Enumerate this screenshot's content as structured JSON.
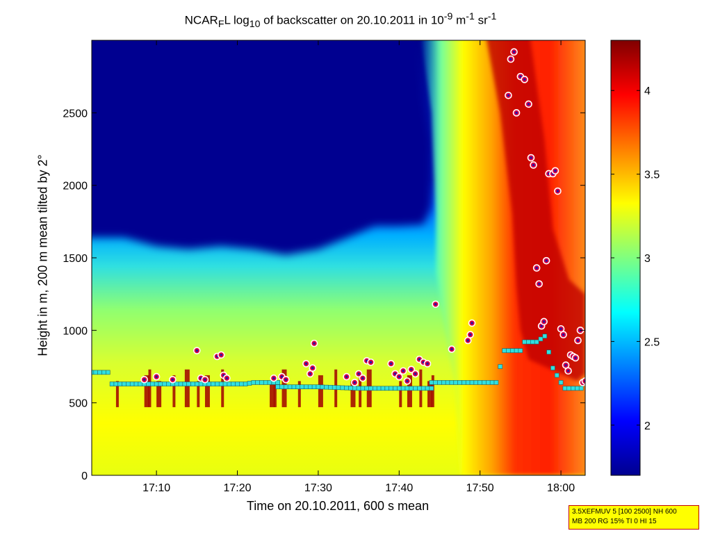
{
  "chart_data": {
    "type": "heatmap",
    "title": {
      "main": "NCAR",
      "sub1": "F",
      "mid1": "L log",
      "sub2": "10",
      "mid2": " of backscatter on 20.10.2011 in 10",
      "sup1": "-9",
      "mid3": " m",
      "sup2": "-1",
      "mid4": " sr",
      "sup3": "-1"
    },
    "xlabel": "Time on 20.10.2011, 600 s mean",
    "ylabel": "Height in m, 200 m mean tilted by 2°",
    "x_unit": "minutes since 17:00",
    "xlim": [
      2,
      63
    ],
    "ylim": [
      0,
      3000
    ],
    "x_ticks": [
      {
        "value": 10,
        "label": "17:10"
      },
      {
        "value": 20,
        "label": "17:20"
      },
      {
        "value": 30,
        "label": "17:30"
      },
      {
        "value": 40,
        "label": "17:40"
      },
      {
        "value": 50,
        "label": "17:50"
      },
      {
        "value": 60,
        "label": "18:00"
      }
    ],
    "y_ticks": [
      0,
      500,
      1000,
      1500,
      2000,
      2500
    ],
    "colorbar": {
      "range": [
        1.7,
        4.3
      ],
      "ticks": [
        2,
        2.5,
        3,
        3.5,
        4
      ],
      "colormap": "jet"
    },
    "series": [
      {
        "marker": "cyan-square",
        "points": [
          [
            2,
            710
          ],
          [
            4,
            710
          ],
          [
            4.5,
            630
          ],
          [
            10,
            630
          ],
          [
            15,
            630
          ],
          [
            21,
            630
          ],
          [
            22,
            640
          ],
          [
            25,
            640
          ],
          [
            25,
            610
          ],
          [
            30,
            610
          ],
          [
            35,
            600
          ],
          [
            40,
            600
          ],
          [
            44,
            600
          ],
          [
            44,
            640
          ],
          [
            48,
            640
          ],
          [
            52,
            640
          ],
          [
            53,
            860
          ],
          [
            55,
            860
          ],
          [
            55.5,
            920
          ],
          [
            57,
            920
          ],
          [
            58,
            960
          ],
          [
            59,
            740
          ],
          [
            60,
            640
          ],
          [
            60.5,
            600
          ],
          [
            63,
            600
          ]
        ]
      },
      {
        "marker": "red-dot",
        "points": [
          [
            8.5,
            660
          ],
          [
            10,
            680
          ],
          [
            12,
            660
          ],
          [
            15,
            860
          ],
          [
            15.5,
            670
          ],
          [
            16,
            660
          ],
          [
            17.5,
            820
          ],
          [
            18,
            830
          ],
          [
            18.3,
            690
          ],
          [
            18.7,
            670
          ],
          [
            24.5,
            670
          ],
          [
            25.5,
            680
          ],
          [
            26,
            660
          ],
          [
            28.5,
            770
          ],
          [
            29,
            700
          ],
          [
            29.3,
            740
          ],
          [
            29.5,
            910
          ],
          [
            33.5,
            680
          ],
          [
            34.5,
            640
          ],
          [
            35,
            700
          ],
          [
            35.5,
            670
          ],
          [
            36,
            790
          ],
          [
            36.5,
            780
          ],
          [
            39,
            770
          ],
          [
            39.5,
            700
          ],
          [
            40,
            680
          ],
          [
            40.5,
            720
          ],
          [
            41,
            650
          ],
          [
            41.5,
            730
          ],
          [
            42,
            700
          ],
          [
            42.5,
            800
          ],
          [
            43,
            780
          ],
          [
            43.5,
            770
          ],
          [
            44.5,
            1180
          ],
          [
            46.5,
            870
          ],
          [
            48.5,
            930
          ],
          [
            48.8,
            970
          ],
          [
            49,
            1050
          ],
          [
            53.5,
            2620
          ],
          [
            53.8,
            2870
          ],
          [
            54.2,
            2920
          ],
          [
            54.5,
            2500
          ],
          [
            55,
            2750
          ],
          [
            55.5,
            2730
          ],
          [
            56,
            2560
          ],
          [
            56.3,
            2190
          ],
          [
            56.6,
            2140
          ],
          [
            57,
            1430
          ],
          [
            57.3,
            1320
          ],
          [
            57.6,
            1030
          ],
          [
            57.9,
            1060
          ],
          [
            58.2,
            1480
          ],
          [
            58.5,
            2080
          ],
          [
            59,
            2080
          ],
          [
            59.3,
            2100
          ],
          [
            59.6,
            1960
          ],
          [
            60,
            1010
          ],
          [
            60.3,
            970
          ],
          [
            60.6,
            760
          ],
          [
            60.9,
            720
          ],
          [
            61.2,
            830
          ],
          [
            61.5,
            820
          ],
          [
            61.8,
            810
          ],
          [
            62.1,
            930
          ],
          [
            62.4,
            1000
          ],
          [
            62.7,
            640
          ],
          [
            63,
            650
          ]
        ]
      }
    ],
    "info": [
      "3.5XEFMUV 5 [100 2500] NH 600",
      "MB 200 RG 15% TI 0 HI 15"
    ]
  }
}
